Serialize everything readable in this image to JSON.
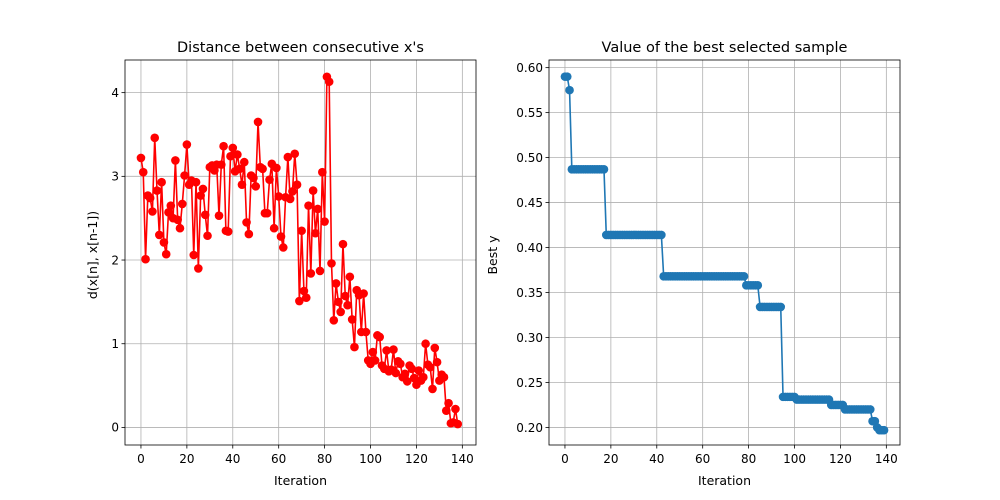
{
  "chart_data": [
    {
      "type": "line",
      "title": "Distance between consecutive x's",
      "xlabel": "Iteration",
      "ylabel": "d(x[n], x[n-1])",
      "xlim": [
        -6.95,
        145.95
      ],
      "ylim": [
        -0.21,
        4.39
      ],
      "xticks": [
        0,
        20,
        40,
        60,
        80,
        100,
        120,
        140
      ],
      "yticks": [
        0,
        1,
        2,
        3,
        4
      ],
      "grid": true,
      "color": "#ff0000",
      "marker": "circle",
      "y": [
        3.22,
        3.05,
        2.01,
        2.77,
        2.74,
        2.58,
        3.46,
        2.83,
        2.3,
        2.93,
        2.21,
        2.07,
        2.57,
        2.65,
        2.5,
        3.19,
        2.48,
        2.38,
        2.67,
        3.01,
        3.38,
        2.9,
        2.95,
        2.06,
        2.93,
        1.9,
        2.77,
        2.85,
        2.54,
        2.29,
        3.11,
        3.13,
        3.07,
        3.14,
        2.53,
        3.14,
        3.36,
        2.35,
        2.34,
        3.24,
        3.34,
        3.06,
        3.26,
        3.09,
        2.9,
        3.17,
        2.45,
        2.31,
        3.01,
        2.98,
        2.88,
        3.65,
        3.11,
        3.09,
        2.56,
        2.56,
        2.96,
        3.15,
        2.38,
        3.1,
        2.76,
        2.28,
        2.15,
        2.75,
        3.23,
        2.73,
        2.82,
        3.27,
        2.9,
        1.51,
        2.35,
        1.63,
        1.55,
        2.65,
        1.84,
        2.83,
        2.32,
        2.61,
        1.87,
        3.05,
        2.46,
        4.19,
        4.13,
        1.96,
        1.28,
        1.72,
        1.5,
        1.38,
        2.19,
        1.57,
        1.46,
        1.8,
        1.29,
        0.96,
        1.64,
        1.58,
        1.14,
        1.6,
        1.14,
        0.8,
        0.76,
        0.9,
        0.8,
        1.1,
        1.08,
        0.74,
        0.7,
        0.92,
        0.67,
        0.69,
        0.93,
        0.65,
        0.79,
        0.76,
        0.6,
        0.64,
        0.55,
        0.74,
        0.7,
        0.59,
        0.51,
        0.68,
        0.56,
        0.6,
        1.0,
        0.75,
        0.72,
        0.46,
        0.95,
        0.78,
        0.56,
        0.63,
        0.6,
        0.2,
        0.29,
        0.05,
        0.06,
        0.22,
        0.04
      ]
    },
    {
      "type": "line",
      "title": "Value of the best selected sample",
      "xlabel": "Iteration",
      "ylabel": "Best y",
      "xlim": [
        -6.95,
        145.95
      ],
      "ylim": [
        0.1805,
        0.6085
      ],
      "xticks": [
        0,
        20,
        40,
        60,
        80,
        100,
        120,
        140
      ],
      "yticks": [
        0.2,
        0.25,
        0.3,
        0.35,
        0.4,
        0.45,
        0.5,
        0.55,
        0.6
      ],
      "ytick_labels": [
        "0.20",
        "0.25",
        "0.30",
        "0.35",
        "0.40",
        "0.45",
        "0.50",
        "0.55",
        "0.60"
      ],
      "grid": true,
      "color": "#1f77b4",
      "marker": "circle",
      "steps": [
        {
          "from": 0,
          "to": 1,
          "value": 0.59
        },
        {
          "from": 2,
          "to": 2,
          "value": 0.575
        },
        {
          "from": 3,
          "to": 17,
          "value": 0.487
        },
        {
          "from": 18,
          "to": 42,
          "value": 0.414
        },
        {
          "from": 43,
          "to": 78,
          "value": 0.368
        },
        {
          "from": 79,
          "to": 84,
          "value": 0.358
        },
        {
          "from": 85,
          "to": 94,
          "value": 0.334
        },
        {
          "from": 95,
          "to": 100,
          "value": 0.234
        },
        {
          "from": 101,
          "to": 115,
          "value": 0.231
        },
        {
          "from": 116,
          "to": 121,
          "value": 0.225
        },
        {
          "from": 122,
          "to": 133,
          "value": 0.22
        },
        {
          "from": 134,
          "to": 135,
          "value": 0.207
        },
        {
          "from": 136,
          "to": 136,
          "value": 0.2
        },
        {
          "from": 137,
          "to": 139,
          "value": 0.197
        }
      ]
    }
  ]
}
